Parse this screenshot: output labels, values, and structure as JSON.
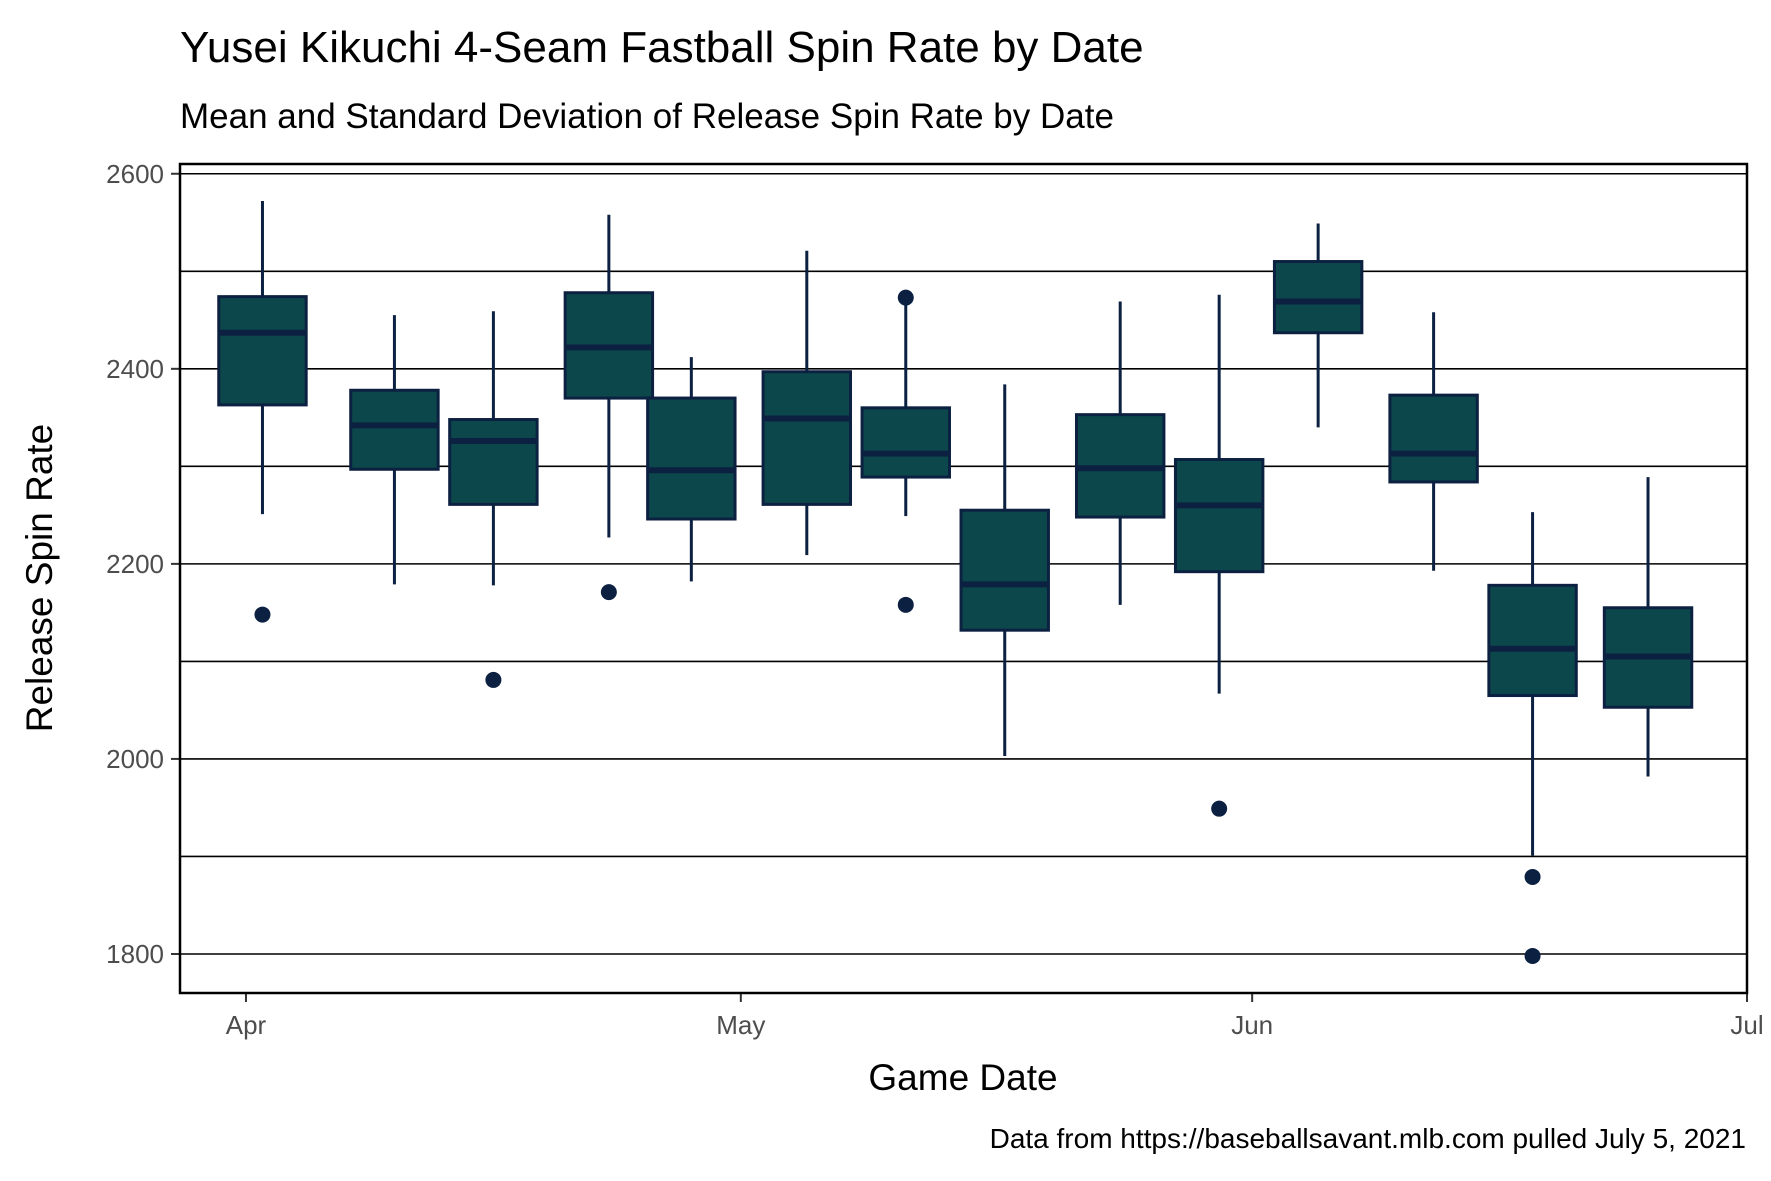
{
  "chart_data": {
    "type": "box",
    "title": "Yusei Kikuchi 4-Seam Fastball Spin Rate by Date",
    "subtitle": "Mean and Standard Deviation of Release Spin Rate by Date",
    "xlabel": "Game Date",
    "ylabel": "Release Spin Rate",
    "caption": "Data from https://baseballsavant.mlb.com pulled July 5, 2021",
    "ylim": [
      1760,
      2610
    ],
    "yticks": [
      1800,
      2000,
      2200,
      2400,
      2600
    ],
    "ygrid": [
      1800,
      1900,
      2000,
      2100,
      2200,
      2300,
      2400,
      2500,
      2600
    ],
    "xlim": [
      "2021-03-28",
      "2021-07-01"
    ],
    "xticks": [
      {
        "date": "2021-04-01",
        "label": "Apr"
      },
      {
        "date": "2021-05-01",
        "label": "May"
      },
      {
        "date": "2021-06-01",
        "label": "Jun"
      },
      {
        "date": "2021-07-01",
        "label": "Jul"
      }
    ],
    "grid": true,
    "colors": {
      "fill": "#0c484b",
      "line": "#0c2141"
    },
    "boxes": [
      {
        "date": "2021-04-02",
        "whisker_low": 2251,
        "q1": 2363,
        "median": 2437,
        "q3": 2474,
        "whisker_high": 2572,
        "outliers": [
          2148
        ]
      },
      {
        "date": "2021-04-10",
        "whisker_low": 2179,
        "q1": 2297,
        "median": 2342,
        "q3": 2378,
        "whisker_high": 2455,
        "outliers": []
      },
      {
        "date": "2021-04-16",
        "whisker_low": 2178,
        "q1": 2261,
        "median": 2326,
        "q3": 2348,
        "whisker_high": 2459,
        "outliers": [
          2081
        ]
      },
      {
        "date": "2021-04-23",
        "whisker_low": 2227,
        "q1": 2370,
        "median": 2422,
        "q3": 2478,
        "whisker_high": 2558,
        "outliers": [
          2171
        ]
      },
      {
        "date": "2021-04-28",
        "whisker_low": 2182,
        "q1": 2246,
        "median": 2296,
        "q3": 2370,
        "whisker_high": 2412,
        "outliers": []
      },
      {
        "date": "2021-05-05",
        "whisker_low": 2209,
        "q1": 2261,
        "median": 2349,
        "q3": 2397,
        "whisker_high": 2521,
        "outliers": []
      },
      {
        "date": "2021-05-11",
        "whisker_low": 2249,
        "q1": 2289,
        "median": 2313,
        "q3": 2360,
        "whisker_high": 2470,
        "outliers": [
          2473,
          2158
        ]
      },
      {
        "date": "2021-05-17",
        "whisker_low": 2003,
        "q1": 2132,
        "median": 2179,
        "q3": 2255,
        "whisker_high": 2384,
        "outliers": []
      },
      {
        "date": "2021-05-24",
        "whisker_low": 2158,
        "q1": 2248,
        "median": 2298,
        "q3": 2353,
        "whisker_high": 2469,
        "outliers": []
      },
      {
        "date": "2021-05-30",
        "whisker_low": 2067,
        "q1": 2192,
        "median": 2260,
        "q3": 2307,
        "whisker_high": 2476,
        "outliers": [
          1949
        ]
      },
      {
        "date": "2021-06-05",
        "whisker_low": 2340,
        "q1": 2437,
        "median": 2469,
        "q3": 2510,
        "whisker_high": 2549,
        "outliers": []
      },
      {
        "date": "2021-06-12",
        "whisker_low": 2193,
        "q1": 2284,
        "median": 2313,
        "q3": 2373,
        "whisker_high": 2458,
        "outliers": []
      },
      {
        "date": "2021-06-18",
        "whisker_low": 1901,
        "q1": 2065,
        "median": 2113,
        "q3": 2178,
        "whisker_high": 2253,
        "outliers": [
          1879,
          1798
        ]
      },
      {
        "date": "2021-06-25",
        "whisker_low": 1982,
        "q1": 2053,
        "median": 2105,
        "q3": 2155,
        "whisker_high": 2289,
        "outliers": []
      }
    ]
  }
}
